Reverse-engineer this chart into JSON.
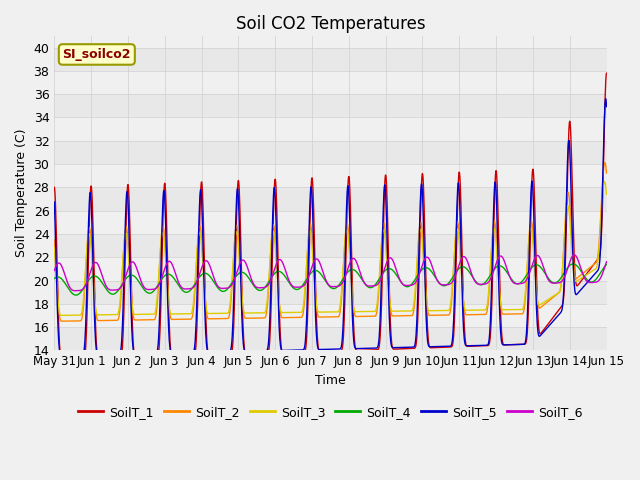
{
  "title": "Soil CO2 Temperatures",
  "xlabel": "Time",
  "ylabel": "Soil Temperature (C)",
  "ylim": [
    14,
    41
  ],
  "yticks": [
    14,
    16,
    18,
    20,
    22,
    24,
    26,
    28,
    30,
    32,
    34,
    36,
    38,
    40
  ],
  "annotation": "SI_soilco2",
  "series": [
    "SoilT_1",
    "SoilT_2",
    "SoilT_3",
    "SoilT_4",
    "SoilT_5",
    "SoilT_6"
  ],
  "colors": [
    "#cc0000",
    "#ff8800",
    "#ddcc00",
    "#00aa00",
    "#0000cc",
    "#cc00cc"
  ],
  "days": 15,
  "n_points": 1500,
  "xtick_labels": [
    "May 31",
    "Jun 1",
    "Jun 2",
    "Jun 3",
    "Jun 4",
    "Jun 5",
    "Jun 6",
    "Jun 7",
    "Jun 8",
    "Jun 9",
    "Jun 10",
    "Jun 11",
    "Jun 12",
    "Jun 13",
    "Jun 14",
    "Jun 15"
  ],
  "stripe_colors": [
    "#e8e8e8",
    "#f0f0f0"
  ],
  "bg_color": "#f0f0f0",
  "grid_color": "#d0d0d0",
  "title_fontsize": 12,
  "axis_fontsize": 9,
  "label_fontsize": 9,
  "legend_fontsize": 9
}
